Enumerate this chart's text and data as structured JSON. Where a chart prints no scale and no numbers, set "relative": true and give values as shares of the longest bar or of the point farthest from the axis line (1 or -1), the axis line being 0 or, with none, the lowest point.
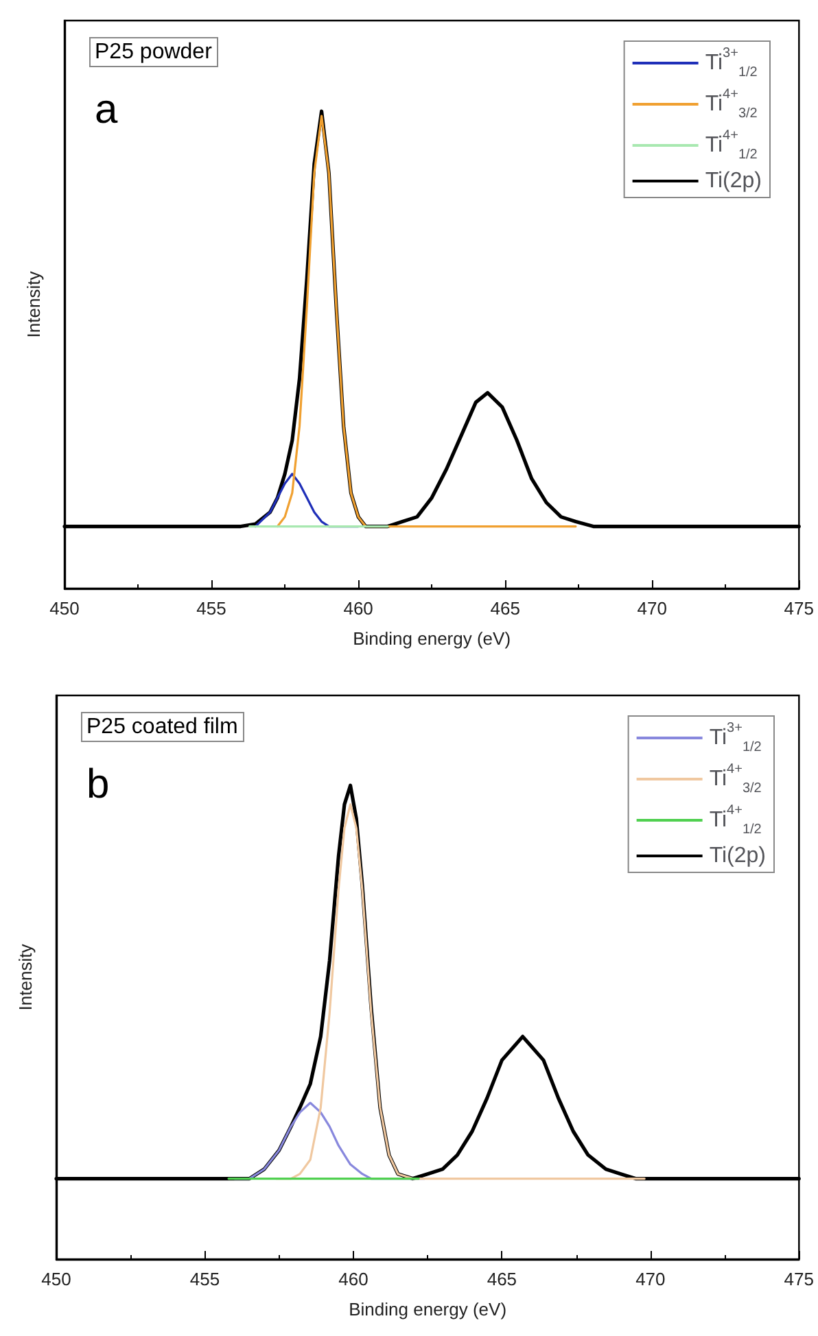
{
  "chart_data": [
    {
      "type": "line",
      "title": "P25 powder",
      "annotations": [
        "a"
      ],
      "xlabel": "Binding energy (eV)",
      "ylabel": "Intensity",
      "relative": true,
      "tick_labels": "x",
      "legend": "top right",
      "xlim": [
        450,
        475
      ],
      "xticks": [
        450,
        455,
        460,
        465,
        470,
        475
      ],
      "series": [
        {
          "name": "Ti$^{3+}$$_{1/2}$",
          "color": "#1f2fb8",
          "x": [
            456.5,
            457,
            457.25,
            457.5,
            457.75,
            458,
            458.25,
            458.5,
            458.75,
            459,
            460
          ],
          "values": [
            0.13,
            0.16,
            0.19,
            0.22,
            0.24,
            0.22,
            0.19,
            0.16,
            0.14,
            0.13,
            0.13
          ]
        },
        {
          "name": "Ti$^{4+}$$_{3/2}$",
          "color": "#f0a030",
          "x": [
            457.25,
            457.5,
            457.75,
            458,
            458.25,
            458.5,
            458.75,
            459,
            459.25,
            459.5,
            459.75,
            460,
            460.25,
            467.4
          ],
          "values": [
            0.13,
            0.15,
            0.2,
            0.34,
            0.59,
            0.87,
            0.99,
            0.87,
            0.59,
            0.34,
            0.2,
            0.15,
            0.13,
            0.13
          ]
        },
        {
          "name": "Ti$^{4+}$$_{1/2}$",
          "color": "#a8e8b0",
          "x": [
            456.3,
            461
          ],
          "values": [
            0.13,
            0.13
          ]
        },
        {
          "name": "Ti(2p)",
          "color": "#000000",
          "x": [
            450,
            456,
            456.5,
            457,
            457.25,
            457.5,
            457.75,
            458,
            458.25,
            458.5,
            458.75,
            459,
            459.25,
            459.5,
            459.75,
            460,
            460.25,
            460.5,
            461,
            461.5,
            462,
            462.5,
            463,
            463.5,
            464,
            464.4,
            464.9,
            465.4,
            465.9,
            466.4,
            466.9,
            467.4,
            468,
            475
          ],
          "values": [
            0.13,
            0.13,
            0.135,
            0.16,
            0.19,
            0.24,
            0.31,
            0.44,
            0.65,
            0.89,
            1.0,
            0.87,
            0.59,
            0.34,
            0.2,
            0.15,
            0.13,
            0.13,
            0.13,
            0.14,
            0.15,
            0.19,
            0.25,
            0.32,
            0.39,
            0.41,
            0.38,
            0.31,
            0.23,
            0.18,
            0.15,
            0.14,
            0.13,
            0.13
          ]
        }
      ]
    },
    {
      "type": "line",
      "title": "P25 coated film",
      "annotations": [
        "b"
      ],
      "xlabel": "Binding energy (eV)",
      "ylabel": "Intensity",
      "relative": true,
      "tick_labels": "x",
      "legend": "top right",
      "xlim": [
        450,
        475
      ],
      "xticks": [
        450,
        455,
        460,
        465,
        470,
        475
      ],
      "series": [
        {
          "name": "Ti$^{3+}$$_{1/2}$",
          "color": "#8888dd",
          "x": [
            456,
            456.5,
            457,
            457.5,
            457.9,
            458.2,
            458.55,
            458.9,
            459.2,
            459.5,
            459.7,
            459.9,
            460.1,
            460.3,
            460.6,
            462.4
          ],
          "values": [
            0.17,
            0.17,
            0.19,
            0.23,
            0.28,
            0.31,
            0.33,
            0.31,
            0.28,
            0.24,
            0.22,
            0.2,
            0.19,
            0.18,
            0.17,
            0.17
          ]
        },
        {
          "name": "Ti$^{4+}$$_{3/2}$",
          "color": "#f0c8a0",
          "x": [
            457.4,
            457.9,
            458.2,
            458.55,
            458.9,
            459.2,
            459.5,
            459.7,
            459.9,
            460.1,
            460.3,
            460.6,
            460.9,
            461.2,
            461.5,
            462,
            469.8
          ],
          "values": [
            0.17,
            0.17,
            0.18,
            0.21,
            0.32,
            0.52,
            0.78,
            0.91,
            0.96,
            0.91,
            0.78,
            0.52,
            0.32,
            0.22,
            0.18,
            0.17,
            0.17
          ]
        },
        {
          "name": "Ti$^{4+}$$_{1/2}$",
          "color": "#50d050",
          "x": [
            455.8,
            462.2
          ],
          "values": [
            0.17,
            0.17
          ]
        },
        {
          "name": "Ti(2p)",
          "color": "#000000",
          "x": [
            450,
            455.5,
            456,
            456.5,
            457,
            457.5,
            457.9,
            458.2,
            458.55,
            458.9,
            459.2,
            459.5,
            459.7,
            459.9,
            460.1,
            460.3,
            460.6,
            460.9,
            461.2,
            461.5,
            462,
            462.5,
            463,
            463.5,
            464,
            464.5,
            465,
            465.7,
            466.4,
            466.9,
            467.4,
            467.9,
            468.5,
            469,
            469.5,
            475
          ],
          "values": [
            0.17,
            0.17,
            0.17,
            0.17,
            0.19,
            0.23,
            0.28,
            0.32,
            0.37,
            0.47,
            0.63,
            0.85,
            0.96,
            1.0,
            0.93,
            0.79,
            0.53,
            0.32,
            0.22,
            0.18,
            0.17,
            0.18,
            0.19,
            0.22,
            0.27,
            0.34,
            0.42,
            0.47,
            0.42,
            0.34,
            0.27,
            0.22,
            0.19,
            0.18,
            0.17,
            0.17
          ]
        }
      ]
    }
  ]
}
